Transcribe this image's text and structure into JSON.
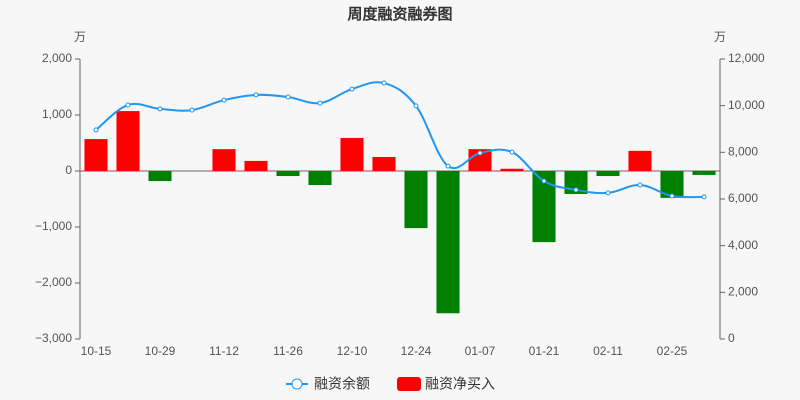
{
  "chart_data": {
    "type": "bar",
    "title": "周度融资融券图",
    "y_unit": "万",
    "y2_unit": "万",
    "categories": [
      "10-15",
      null,
      "10-29",
      null,
      "11-12",
      null,
      "11-26",
      null,
      "12-10",
      null,
      "12-24",
      null,
      "01-07",
      null,
      "01-21",
      null,
      "02-11",
      null,
      "02-25",
      null
    ],
    "series": [
      {
        "name": "融资余额",
        "type": "line",
        "axis": "y2",
        "color": "#2196f3",
        "values": [
          8960,
          10030,
          9860,
          9810,
          10240,
          10460,
          10370,
          10110,
          10710,
          10970,
          9990,
          7410,
          7970,
          8010,
          6770,
          6390,
          6260,
          6600,
          6130,
          6090
        ]
      },
      {
        "name": "融资净买入",
        "type": "bar",
        "color": "#ff0000",
        "negative_color": "#008000",
        "values": [
          570,
          1070,
          -180,
          0,
          390,
          180,
          -90,
          -250,
          590,
          250,
          -1020,
          -2540,
          390,
          40,
          -1270,
          -410,
          -90,
          360,
          -480,
          -70
        ]
      }
    ],
    "ylim": [
      -3000,
      2000
    ],
    "yticks": [
      {
        "value": -3000,
        "label": "−3,000"
      },
      {
        "value": -2000,
        "label": "−2,000"
      },
      {
        "value": -1000,
        "label": "−1,000"
      },
      0,
      {
        "value": 1000,
        "label": "1,000"
      },
      {
        "value": 2000,
        "label": "2,000"
      }
    ],
    "y2lim": [
      0,
      12000
    ],
    "y2ticks": [
      0,
      {
        "value": 2000,
        "label": "2,000"
      },
      {
        "value": 4000,
        "label": "4,000"
      },
      {
        "value": 6000,
        "label": "6,000"
      },
      {
        "value": 8000,
        "label": "8,000"
      },
      {
        "value": 10000,
        "label": "10,000"
      },
      {
        "value": 12000,
        "label": "12,000"
      }
    ]
  }
}
